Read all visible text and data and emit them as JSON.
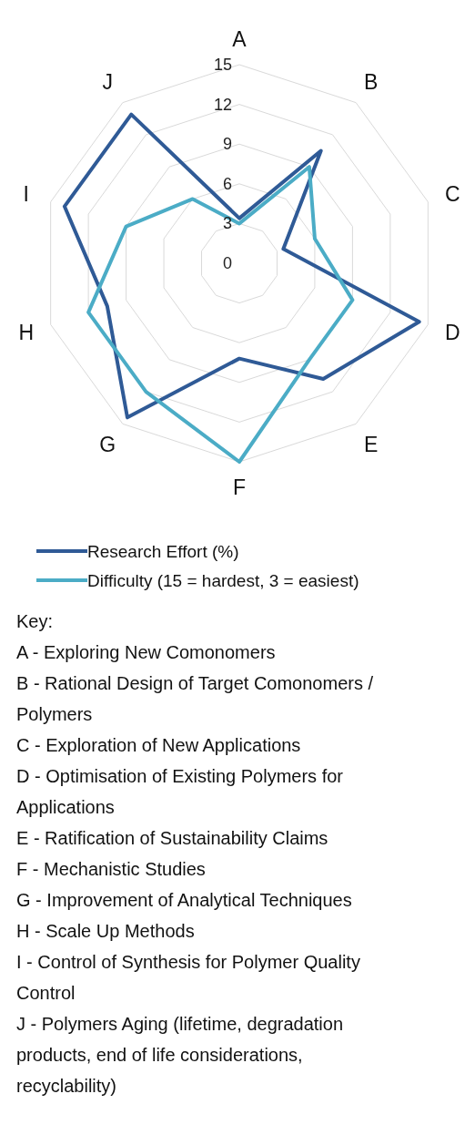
{
  "chart_data": {
    "type": "radar",
    "categories": [
      "A",
      "B",
      "C",
      "D",
      "E",
      "F",
      "G",
      "H",
      "I",
      "J"
    ],
    "series": [
      {
        "name": "Research Effort (%)",
        "color": "#2f5a96",
        "values": [
          3.4,
          10.5,
          3.5,
          14.3,
          10.8,
          7.2,
          14.4,
          10.5,
          13.9,
          13.9
        ]
      },
      {
        "name": "Difficulty (15 = hardest, 3 = easiest)",
        "color": "#4bacc6",
        "values": [
          3,
          9,
          6,
          9,
          9,
          15,
          12,
          12,
          9,
          6
        ]
      }
    ],
    "ylim": [
      0,
      15
    ],
    "yticks": [
      0,
      3,
      6,
      9,
      12,
      15
    ],
    "grid": true,
    "legend": "bottom",
    "annotations": [
      "Key:",
      "A - Exploring New Comonomers",
      "B - Rational Design of Target Comonomers / Polymers",
      "C - Exploration of New Applications",
      "D - Optimisation of Existing Polymers for Applications",
      "E - Ratification of Sustainability Claims",
      "F - Mechanistic Studies",
      "G - Improvement of Analytical Techniques",
      "H - Scale Up Methods",
      "I - Control of Synthesis for Polymer Quality Control",
      "J - Polymers Aging (lifetime, degradation products, end of life considerations, recyclability)"
    ]
  }
}
